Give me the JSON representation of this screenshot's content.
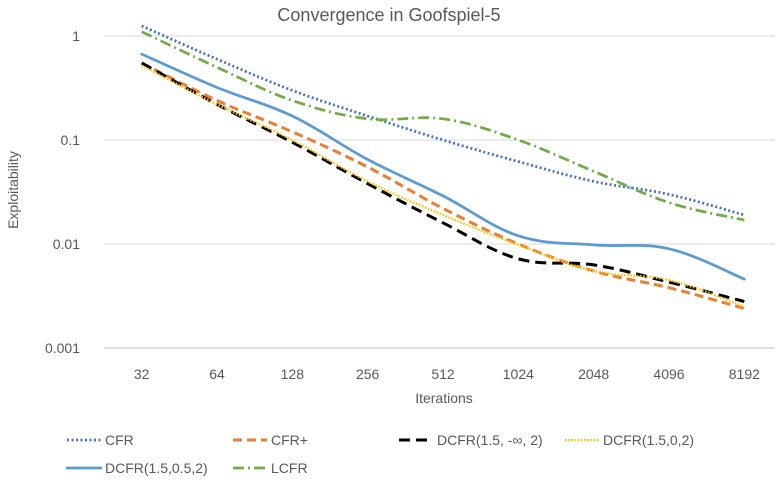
{
  "chart_data": {
    "type": "line",
    "title": "Convergence in Goofspiel-5",
    "xlabel": "Iterations",
    "ylabel": "Exploitability",
    "yscale": "log",
    "ylim": [
      0.001,
      1
    ],
    "yticks": [
      1,
      0.1,
      0.01,
      0.001
    ],
    "ytick_labels": [
      "1",
      "0.1",
      "0.01",
      "0.001"
    ],
    "categories": [
      "32",
      "64",
      "128",
      "256",
      "512",
      "1024",
      "2048",
      "4096",
      "8192"
    ],
    "legend_position": "bottom",
    "series": [
      {
        "name": "CFR",
        "color": "#4472C4",
        "dash": "dotted",
        "values": [
          1.25,
          0.6,
          0.3,
          0.17,
          0.1,
          0.062,
          0.04,
          0.03,
          0.019
        ]
      },
      {
        "name": "CFR+",
        "color": "#ED7D31",
        "dash": "dashed",
        "values": [
          0.55,
          0.24,
          0.12,
          0.055,
          0.022,
          0.01,
          0.0055,
          0.0038,
          0.0024
        ]
      },
      {
        "name": "DCFR(1.5, -∞, 2)",
        "color": "#000000",
        "dash": "longdash",
        "values": [
          0.55,
          0.22,
          0.095,
          0.038,
          0.016,
          0.0072,
          0.0063,
          0.0043,
          0.0028
        ]
      },
      {
        "name": "DCFR(1.5,0,2)",
        "color": "#FFC000",
        "dash": "fine-dotted",
        "values": [
          0.52,
          0.22,
          0.1,
          0.04,
          0.019,
          0.0098,
          0.0055,
          0.0045,
          0.0025
        ]
      },
      {
        "name": "DCFR(1.5,0.5,2)",
        "color": "#5B9BD5",
        "dash": "solid",
        "values": [
          0.67,
          0.32,
          0.17,
          0.065,
          0.029,
          0.012,
          0.0098,
          0.009,
          0.0046
        ]
      },
      {
        "name": "LCFR",
        "color": "#70AD47",
        "dash": "dashdot",
        "values": [
          1.1,
          0.5,
          0.24,
          0.16,
          0.16,
          0.1,
          0.05,
          0.025,
          0.017
        ]
      }
    ]
  }
}
